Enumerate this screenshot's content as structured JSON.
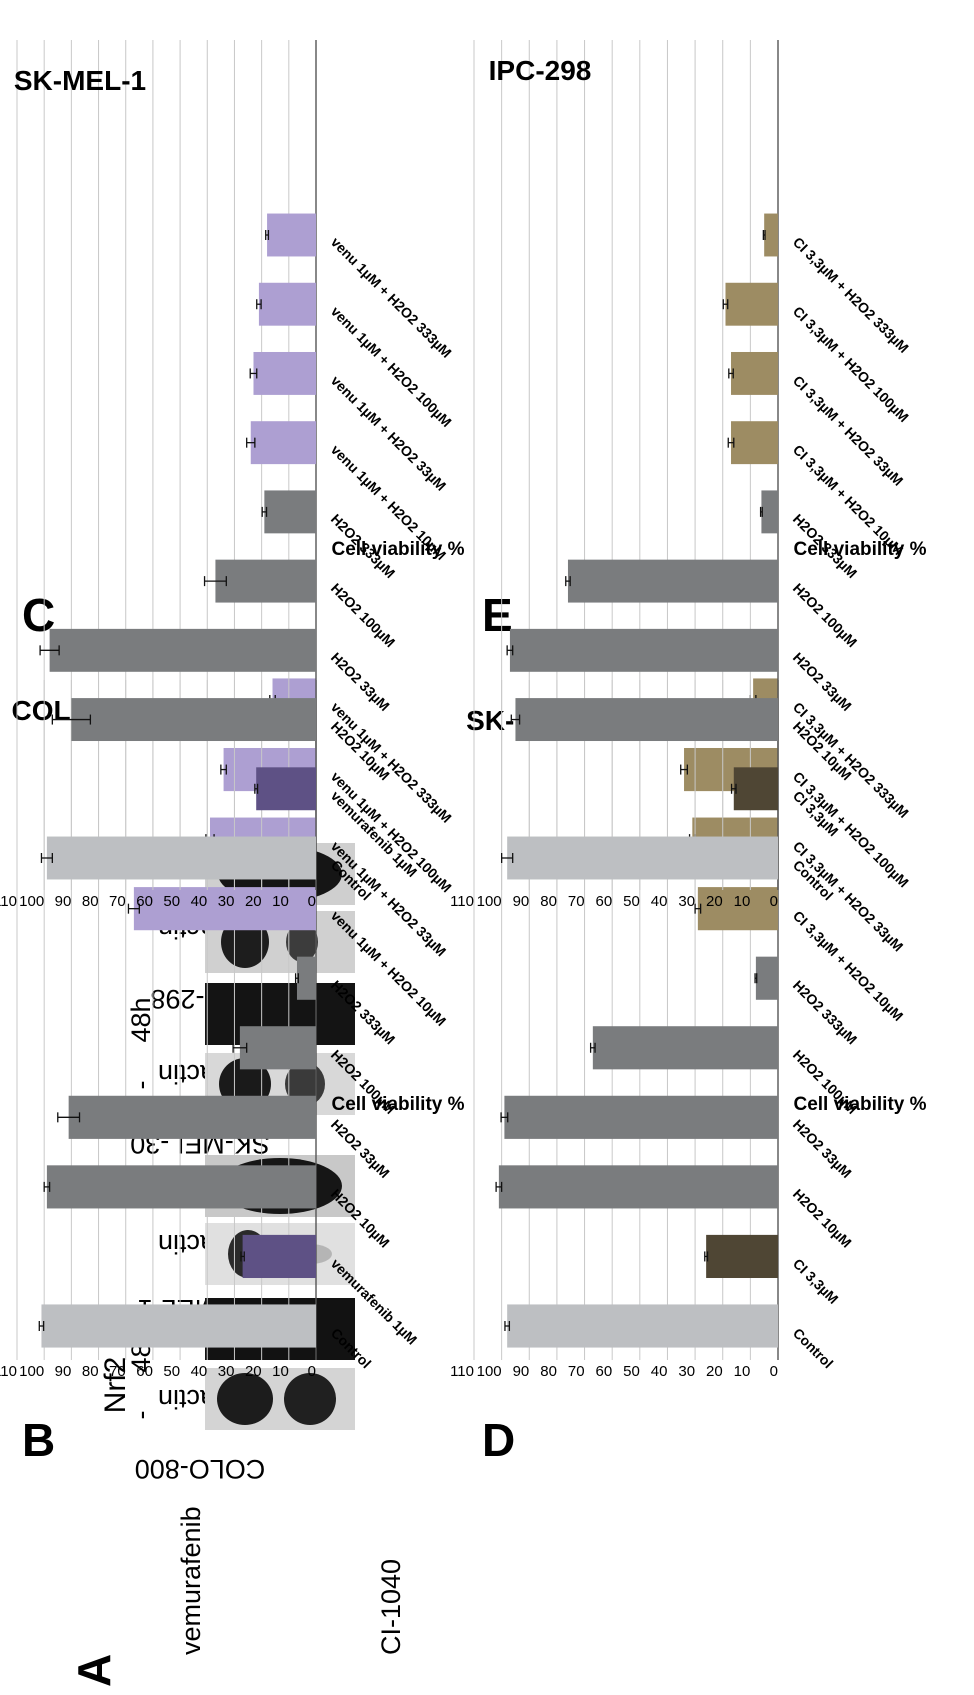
{
  "panel_labels": [
    "A",
    "B",
    "C",
    "D",
    "E"
  ],
  "western": {
    "protein": "Nrf2",
    "lane_labels": [
      "-",
      "48h"
    ],
    "groups": [
      {
        "treatment": "vemurafenib",
        "rows": [
          "COLO-800",
          "B-actin",
          "SK-MEL-1",
          "B-actin"
        ]
      },
      {
        "treatment": "CI-1040",
        "rows": [
          "SK-MEL-30",
          "B-actin",
          "IPC-298",
          "B-actin"
        ]
      }
    ]
  },
  "colors": {
    "control": "#bdbfc2",
    "vemurafenib": "#5e5185",
    "h2o2": "#7a7c7e",
    "vemu_combo": "#ad9fd2",
    "ci": "#4f4634",
    "ci_combo": "#9d8c63"
  },
  "chart_data": [
    {
      "type": "bar",
      "title": "COLO-800",
      "ylabel": "Cell viability %",
      "ylim": [
        0,
        110
      ],
      "yticks": [
        0,
        10,
        20,
        30,
        40,
        50,
        60,
        70,
        80,
        90,
        100,
        110
      ],
      "grid": true,
      "categories": [
        "Control",
        "vemurafenib 1µM",
        "H2O2 10µM",
        "H2O2 33µM",
        "H2O2 100µM",
        "H2O2 333µM",
        "venu 1µM + H2O2 10µM",
        "venu 1µM + H2O2 33µM",
        "venu 1µM + H2O2 100µM",
        "venu 1µM + H2O2 333µM"
      ],
      "values": [
        101,
        27,
        99,
        91,
        28,
        7,
        67,
        39,
        34,
        16
      ],
      "errors": [
        0.8,
        0.6,
        1.0,
        4.0,
        2.5,
        0.5,
        2.0,
        1.5,
        1.0,
        1.0
      ],
      "bar_colors": [
        "control",
        "vemurafenib",
        "h2o2",
        "h2o2",
        "h2o2",
        "h2o2",
        "vemu_combo",
        "vemu_combo",
        "vemu_combo",
        "vemu_combo"
      ]
    },
    {
      "type": "bar",
      "title": "SK-MEL-1",
      "ylabel": "Cell viability %",
      "ylim": [
        0,
        110
      ],
      "yticks": [
        0,
        10,
        20,
        30,
        40,
        50,
        60,
        70,
        80,
        90,
        100,
        110
      ],
      "grid": true,
      "categories": [
        "Control",
        "vemurafenib 1µM",
        "H2O2 10µM",
        "H2O2 33µM",
        "H2O2 100µM",
        "H2O2 333µM",
        "venu 1µM + H2O2 10µM",
        "venu 1µM + H2O2 33µM",
        "venu 1µM + H2O2 100µM",
        "venu 1µM + H2O2 333µM"
      ],
      "values": [
        99,
        22,
        90,
        98,
        37,
        19,
        24,
        23,
        21,
        18
      ],
      "errors": [
        2.0,
        0.5,
        7.0,
        3.5,
        4.0,
        0.8,
        1.5,
        1.2,
        0.8,
        0.5
      ],
      "bar_colors": [
        "control",
        "vemurafenib",
        "h2o2",
        "h2o2",
        "h2o2",
        "h2o2",
        "vemu_combo",
        "vemu_combo",
        "vemu_combo",
        "vemu_combo"
      ]
    },
    {
      "type": "bar",
      "title": "SK-MEL-30",
      "ylabel": "Cell viability %",
      "ylim": [
        0,
        110
      ],
      "yticks": [
        0,
        10,
        20,
        30,
        40,
        50,
        60,
        70,
        80,
        90,
        100,
        110
      ],
      "grid": true,
      "categories": [
        "Control",
        "CI 3,3µM",
        "H2O2 10µM",
        "H2O2 33µM",
        "H2O2 100µM",
        "H2O2 333µM",
        "CI 3,3µM + H2O2 10µM",
        "CI 3,3µM + H2O2 33µM",
        "CI 3,3µM + H2O2 100µM",
        "CI 3,3µM + H2O2 333µM"
      ],
      "values": [
        98,
        26,
        101,
        99,
        67,
        8,
        29,
        31,
        34,
        9
      ],
      "errors": [
        0.8,
        0.5,
        1.0,
        1.2,
        0.8,
        0.3,
        1.0,
        1.0,
        1.2,
        1.0
      ],
      "bar_colors": [
        "control",
        "ci",
        "h2o2",
        "h2o2",
        "h2o2",
        "h2o2",
        "ci_combo",
        "ci_combo",
        "ci_combo",
        "ci_combo"
      ]
    },
    {
      "type": "bar",
      "title": "IPC-298",
      "ylabel": "Cell viability %",
      "ylim": [
        0,
        110
      ],
      "yticks": [
        0,
        10,
        20,
        30,
        40,
        50,
        60,
        70,
        80,
        90,
        100,
        110
      ],
      "grid": true,
      "categories": [
        "Control",
        "CI 3,3µM",
        "H2O2 10µM",
        "H2O2 33µM",
        "H2O2 100µM",
        "H2O2 333µM",
        "CI 3,3µM + H2O2 10µM",
        "CI 3,3µM + H2O2 33µM",
        "CI 3,3µM + H2O2 100µM",
        "CI 3,3µM + H2O2 333µM"
      ],
      "values": [
        98,
        16,
        95,
        97,
        76,
        6,
        17,
        17,
        19,
        5
      ],
      "errors": [
        2.0,
        0.8,
        1.5,
        1.0,
        0.8,
        0.3,
        1.0,
        0.8,
        0.8,
        0.3
      ],
      "bar_colors": [
        "control",
        "ci",
        "h2o2",
        "h2o2",
        "h2o2",
        "h2o2",
        "ci_combo",
        "ci_combo",
        "ci_combo",
        "ci_combo"
      ]
    }
  ]
}
